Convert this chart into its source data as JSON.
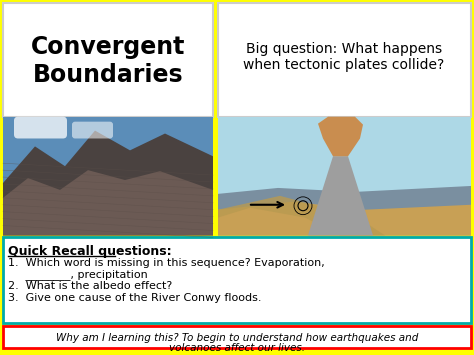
{
  "background_color": "#FFFF00",
  "title_text": "Convergent\nBoundaries",
  "title_bg": "#FFFFFF",
  "big_question": "Big question: What happens\nwhen tectonic plates collide?",
  "big_question_bg": "#FFFFFF",
  "recall_title": "Quick Recall questions:",
  "recall_q1": "1.  Which word is missing in this sequence? Evaporation,",
  "recall_q1b": "     ________, precipitation",
  "recall_q2": "2.  What is the albedo effect?",
  "recall_q3": "3.  Give one cause of the River Conwy floods.",
  "recall_bg": "#FFFFFF",
  "recall_border": "#00AAAA",
  "why_text_line1": "Why am I learning this? To begin to understand how earthquakes and",
  "why_text_line2": "volcanoes affect our lives.",
  "why_bg": "#FFFFFF",
  "why_border": "#FF0000",
  "outer_border": "#FFFF00",
  "mountain_sky": "#5B8DB8",
  "mountain_dark": "#4A4240",
  "mountain_mid": "#6B5A54",
  "volcano_sky": "#ADD8E6",
  "volcano_plate": "#C8A055",
  "volcano_cone": "#9E9E9E",
  "volcano_erupt": "#CD853F"
}
